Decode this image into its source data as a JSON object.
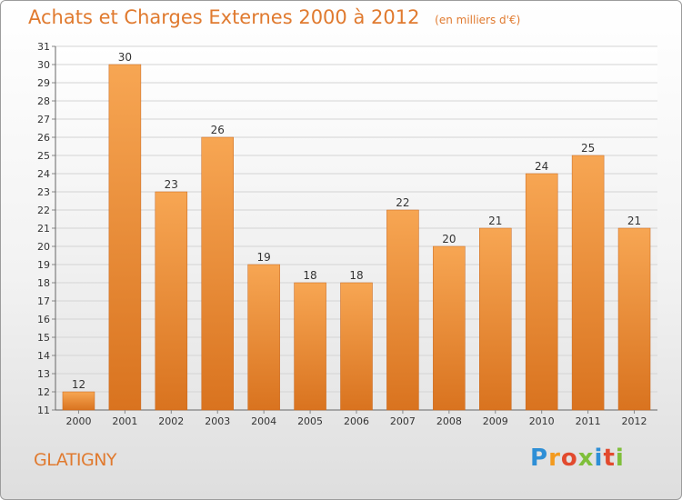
{
  "title": "Achats et Charges Externes 2000 à 2012",
  "subtitle": "(en milliers d'€)",
  "commune": "GLATIGNY",
  "logo": {
    "letters": [
      "P",
      "r",
      "o",
      "x",
      "i",
      "t",
      "i"
    ]
  },
  "colors": {
    "accent": "#e07a2f",
    "bar_light": "#f7a653",
    "bar_dark": "#d9731f"
  },
  "chart_data": {
    "type": "bar",
    "categories": [
      "2000",
      "2001",
      "2002",
      "2003",
      "2004",
      "2005",
      "2006",
      "2007",
      "2008",
      "2009",
      "2010",
      "2011",
      "2012"
    ],
    "values": [
      12,
      30,
      23,
      26,
      19,
      18,
      18,
      22,
      20,
      21,
      24,
      25,
      21
    ],
    "title": "Achats et Charges Externes 2000 à 2012",
    "xlabel": "",
    "ylabel": "",
    "ylim": [
      11,
      31
    ],
    "yticks": [
      11,
      12,
      13,
      14,
      15,
      16,
      17,
      18,
      19,
      20,
      21,
      22,
      23,
      24,
      25,
      26,
      27,
      28,
      29,
      30,
      31
    ],
    "grid": true
  }
}
